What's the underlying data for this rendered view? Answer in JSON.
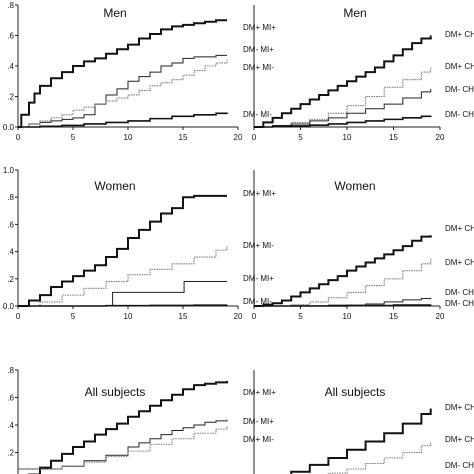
{
  "chart_data": [
    {
      "type": "line",
      "title": "Men",
      "xlim": [
        0,
        20
      ],
      "ylim": [
        0,
        0.8
      ],
      "x_ticks": [
        "0",
        "5",
        "10",
        "15",
        "20"
      ],
      "y_ticks": [
        "0.0",
        ".2",
        ".4",
        ".6",
        ".8"
      ],
      "series": [
        {
          "name": "DM+ MI+",
          "x": [
            0,
            0.3,
            1,
            1.5,
            2,
            3,
            4,
            5,
            6,
            7,
            8,
            9,
            10,
            11,
            12,
            13,
            14,
            15,
            16,
            17,
            18,
            19
          ],
          "y": [
            0,
            0.08,
            0.16,
            0.22,
            0.27,
            0.32,
            0.36,
            0.4,
            0.43,
            0.45,
            0.48,
            0.51,
            0.54,
            0.58,
            0.61,
            0.64,
            0.66,
            0.67,
            0.68,
            0.69,
            0.7,
            0.7
          ]
        },
        {
          "name": "DM- MI+",
          "x": [
            0,
            1,
            2,
            3,
            4,
            5,
            6,
            7,
            8,
            9,
            10,
            11,
            12,
            13,
            14,
            15,
            16,
            17,
            18,
            19
          ],
          "y": [
            0,
            0.02,
            0.03,
            0.04,
            0.05,
            0.06,
            0.08,
            0.15,
            0.21,
            0.25,
            0.3,
            0.33,
            0.36,
            0.4,
            0.42,
            0.45,
            0.46,
            0.46,
            0.47,
            0.47
          ]
        },
        {
          "name": "DM+ MI-",
          "x": [
            0,
            1,
            2,
            3,
            4,
            5,
            6,
            7,
            8,
            9,
            10,
            11,
            12,
            13,
            14,
            15,
            16,
            17,
            18,
            19
          ],
          "y": [
            0,
            0.02,
            0.04,
            0.06,
            0.08,
            0.11,
            0.13,
            0.15,
            0.17,
            0.19,
            0.21,
            0.24,
            0.27,
            0.29,
            0.31,
            0.34,
            0.37,
            0.4,
            0.42,
            0.44
          ]
        },
        {
          "name": "DM- MI-",
          "x": [
            0,
            2,
            4,
            6,
            8,
            10,
            12,
            14,
            16,
            18,
            19
          ],
          "y": [
            0,
            0.005,
            0.01,
            0.02,
            0.03,
            0.04,
            0.055,
            0.07,
            0.08,
            0.09,
            0.095
          ]
        }
      ]
    },
    {
      "type": "line",
      "title": "Men",
      "xlim": [
        0,
        20
      ],
      "ylim": [
        0,
        0.8
      ],
      "x_ticks": [
        "0",
        "5",
        "10",
        "15",
        "20"
      ],
      "y_ticks": [],
      "series": [
        {
          "name": "DM+ CHD+",
          "x": [
            0,
            1,
            2,
            3,
            4,
            5,
            6,
            7,
            8,
            9,
            10,
            11,
            12,
            13,
            14,
            15,
            16,
            17,
            18,
            19
          ],
          "y": [
            0,
            0.03,
            0.06,
            0.09,
            0.12,
            0.15,
            0.18,
            0.21,
            0.24,
            0.27,
            0.3,
            0.33,
            0.36,
            0.39,
            0.43,
            0.47,
            0.51,
            0.55,
            0.58,
            0.6
          ]
        },
        {
          "name": "DM+ CHD-",
          "x": [
            0,
            2,
            4,
            6,
            8,
            10,
            12,
            14,
            16,
            18,
            19
          ],
          "y": [
            0,
            0.01,
            0.03,
            0.05,
            0.09,
            0.14,
            0.2,
            0.26,
            0.31,
            0.36,
            0.39
          ]
        },
        {
          "name": "DM- CHD+",
          "x": [
            0,
            2,
            4,
            6,
            8,
            10,
            12,
            14,
            16,
            18,
            19
          ],
          "y": [
            0,
            0.01,
            0.02,
            0.04,
            0.06,
            0.09,
            0.12,
            0.15,
            0.19,
            0.23,
            0.25
          ]
        },
        {
          "name": "DM- CHD-",
          "x": [
            0,
            2,
            4,
            6,
            8,
            10,
            12,
            14,
            16,
            18,
            19
          ],
          "y": [
            0,
            0.003,
            0.007,
            0.012,
            0.02,
            0.03,
            0.04,
            0.05,
            0.06,
            0.07,
            0.075
          ]
        }
      ]
    },
    {
      "type": "line",
      "title": "Women",
      "xlim": [
        0,
        20
      ],
      "ylim": [
        0,
        1.0
      ],
      "x_ticks": [
        "0",
        "5",
        "10",
        "15",
        "20"
      ],
      "y_ticks": [
        "0.0",
        ".2",
        ".4",
        ".6",
        ".8",
        "1.0"
      ],
      "series": [
        {
          "name": "DM+ MI+",
          "x": [
            0,
            1,
            2,
            3,
            4,
            5,
            6,
            7,
            8,
            9,
            10,
            11,
            12,
            13,
            14,
            15,
            16,
            17,
            18,
            19
          ],
          "y": [
            0,
            0.04,
            0.08,
            0.14,
            0.18,
            0.22,
            0.26,
            0.3,
            0.36,
            0.42,
            0.5,
            0.56,
            0.62,
            0.68,
            0.72,
            0.8,
            0.81,
            0.81,
            0.81,
            0.81
          ]
        },
        {
          "name": "DM+ MI-",
          "x": [
            0,
            2,
            4,
            6,
            8,
            10,
            12,
            14,
            16,
            18,
            19
          ],
          "y": [
            0,
            0.03,
            0.08,
            0.13,
            0.18,
            0.23,
            0.27,
            0.31,
            0.36,
            0.41,
            0.44
          ]
        },
        {
          "name": "DM- MI+",
          "x": [
            0,
            8.5,
            8.6,
            15,
            15.1,
            19
          ],
          "y": [
            0,
            0.0,
            0.1,
            0.1,
            0.18,
            0.18
          ]
        },
        {
          "name": "DM- MI-",
          "x": [
            0,
            4,
            8,
            12,
            16,
            19
          ],
          "y": [
            0,
            0.0,
            0.002,
            0.004,
            0.006,
            0.008
          ]
        }
      ]
    },
    {
      "type": "line",
      "title": "Women",
      "xlim": [
        0,
        20
      ],
      "ylim": [
        0,
        1.0
      ],
      "x_ticks": [
        "0",
        "5",
        "10",
        "15",
        "20"
      ],
      "y_ticks": [],
      "series": [
        {
          "name": "DM+ CHD+",
          "x": [
            0,
            1,
            2,
            3,
            4,
            5,
            6,
            7,
            8,
            9,
            10,
            11,
            12,
            13,
            14,
            15,
            16,
            17,
            18,
            19
          ],
          "y": [
            0,
            0.01,
            0.02,
            0.04,
            0.07,
            0.1,
            0.13,
            0.16,
            0.19,
            0.22,
            0.26,
            0.29,
            0.32,
            0.35,
            0.38,
            0.41,
            0.44,
            0.48,
            0.51,
            0.52
          ]
        },
        {
          "name": "DM+ CHD-",
          "x": [
            0,
            2,
            4,
            6,
            8,
            10,
            12,
            14,
            16,
            18,
            19
          ],
          "y": [
            0,
            0.0,
            0.01,
            0.03,
            0.06,
            0.1,
            0.15,
            0.2,
            0.26,
            0.31,
            0.35
          ]
        },
        {
          "name": "DM- CHD+",
          "x": [
            0,
            4,
            8,
            12,
            14,
            16,
            18,
            19
          ],
          "y": [
            0,
            0.002,
            0.006,
            0.015,
            0.03,
            0.045,
            0.055,
            0.06
          ]
        },
        {
          "name": "DM- CHD-",
          "x": [
            0,
            5,
            10,
            15,
            19
          ],
          "y": [
            0,
            0.0,
            0.003,
            0.007,
            0.01
          ]
        }
      ]
    },
    {
      "type": "line",
      "title": "All subjects",
      "xlim": [
        0,
        20
      ],
      "ylim": [
        0,
        0.8
      ],
      "x_ticks": [],
      "y_ticks": [
        ".2",
        ".4",
        ".6",
        ".8"
      ],
      "series": [
        {
          "name": "DM+ MI+",
          "x": [
            0,
            1,
            2,
            3,
            4,
            5,
            6,
            7,
            8,
            9,
            10,
            11,
            12,
            13,
            14,
            15,
            16,
            17,
            18,
            19
          ],
          "y": [
            0,
            0.04,
            0.09,
            0.14,
            0.19,
            0.24,
            0.28,
            0.33,
            0.37,
            0.41,
            0.46,
            0.5,
            0.54,
            0.58,
            0.62,
            0.66,
            0.69,
            0.7,
            0.71,
            0.72
          ]
        },
        {
          "name": "DM- MI+",
          "x": [
            0,
            4,
            6,
            8,
            10,
            11,
            12,
            13,
            14,
            15,
            16,
            17,
            18,
            19
          ],
          "y": [
            0.08,
            0.1,
            0.14,
            0.18,
            0.24,
            0.27,
            0.3,
            0.33,
            0.36,
            0.38,
            0.4,
            0.42,
            0.43,
            0.44
          ]
        },
        {
          "name": "DM+ MI-",
          "x": [
            0,
            4,
            6,
            8,
            10,
            12,
            14,
            16,
            18,
            19
          ],
          "y": [
            0.08,
            0.1,
            0.13,
            0.17,
            0.21,
            0.26,
            0.3,
            0.34,
            0.37,
            0.39
          ]
        }
      ]
    },
    {
      "type": "line",
      "title": "All subjects",
      "xlim": [
        0,
        20
      ],
      "ylim": [
        0,
        0.8
      ],
      "x_ticks": [],
      "y_ticks": [],
      "series": [
        {
          "name": "DM+ CHD+",
          "x": [
            0,
            2,
            4,
            6,
            8,
            10,
            12,
            14,
            16,
            18,
            19
          ],
          "y": [
            0,
            0.02,
            0.06,
            0.11,
            0.16,
            0.22,
            0.28,
            0.34,
            0.41,
            0.48,
            0.52
          ]
        },
        {
          "name": "DM+ CHD-",
          "x": [
            4,
            6,
            8,
            10,
            12,
            14,
            16,
            18,
            19
          ],
          "y": [
            0,
            0.02,
            0.05,
            0.08,
            0.12,
            0.16,
            0.2,
            0.25,
            0.28
          ]
        },
        {
          "name": "DM- CHD+",
          "x": [],
          "y": []
        }
      ]
    }
  ],
  "colors": {
    "solid_bold": "#111111",
    "solid_thin": "#222222",
    "dotted_gray": "#7a7a7a",
    "axis": "#222222"
  }
}
